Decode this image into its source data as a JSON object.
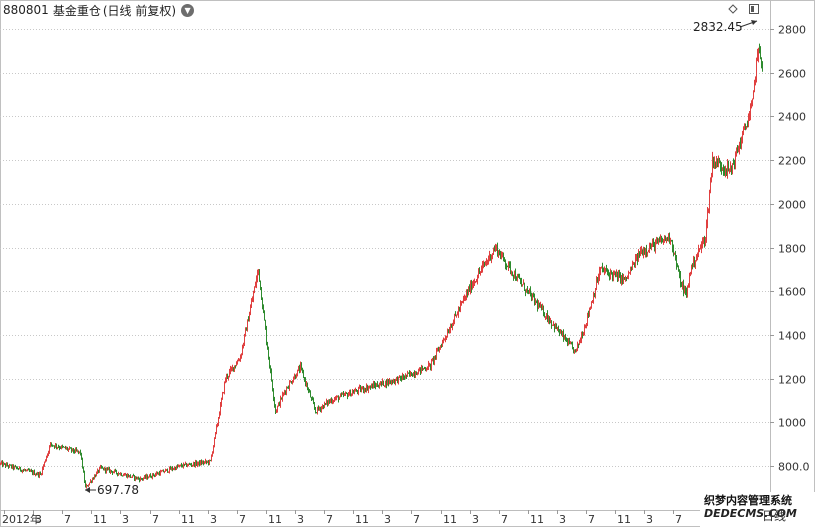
{
  "header": {
    "code": "880801",
    "name": "基金重仓",
    "mode": "(日线 前复权)",
    "dropdown_icon": "chevron-down-icon"
  },
  "watermark": {
    "line1": "织梦内容管理系统",
    "line2": "DEDECMS.COM",
    "suffix": "日线"
  },
  "colors": {
    "up": "#e04040",
    "down": "#2e8b2e",
    "grid": "#c8c8c8",
    "axis_text": "#333333"
  },
  "chart_data": {
    "type": "candlestick",
    "title": "880801 基金重仓 (日线 前复权)",
    "y_ticks": [
      "800.0",
      "1000",
      "1200",
      "1400",
      "1600",
      "1800",
      "2000",
      "2200",
      "2400",
      "2600",
      "2800"
    ],
    "ylim": [
      730,
      2860
    ],
    "x_ticks": [
      "2012年",
      "3",
      "7",
      "11",
      "3",
      "7",
      "11",
      "3",
      "7",
      "11",
      "3",
      "7",
      "11",
      "3",
      "7",
      "11",
      "3",
      "7",
      "11",
      "3",
      "7",
      "11",
      "3",
      "7",
      "11"
    ],
    "grid": true,
    "annotations": [
      {
        "label": "2832.45",
        "type": "max",
        "value": 2832.45,
        "label_side": "left"
      },
      {
        "label": "697.78",
        "type": "min",
        "value": 697.78,
        "label_side": "right"
      }
    ],
    "series": {
      "close_trend": [
        [
          0,
          810
        ],
        [
          40,
          760
        ],
        [
          50,
          900
        ],
        [
          80,
          860
        ],
        [
          85,
          700
        ],
        [
          100,
          790
        ],
        [
          140,
          740
        ],
        [
          180,
          800
        ],
        [
          210,
          820
        ],
        [
          225,
          1200
        ],
        [
          240,
          1300
        ],
        [
          258,
          1700
        ],
        [
          268,
          1300
        ],
        [
          275,
          1050
        ],
        [
          285,
          1150
        ],
        [
          300,
          1250
        ],
        [
          315,
          1050
        ],
        [
          330,
          1100
        ],
        [
          360,
          1150
        ],
        [
          400,
          1200
        ],
        [
          430,
          1260
        ],
        [
          470,
          1620
        ],
        [
          495,
          1800
        ],
        [
          510,
          1700
        ],
        [
          535,
          1550
        ],
        [
          575,
          1320
        ],
        [
          585,
          1450
        ],
        [
          600,
          1700
        ],
        [
          625,
          1650
        ],
        [
          640,
          1780
        ],
        [
          670,
          1850
        ],
        [
          680,
          1640
        ],
        [
          686,
          1580
        ],
        [
          690,
          1700
        ],
        [
          705,
          1850
        ],
        [
          712,
          2200
        ],
        [
          730,
          2150
        ],
        [
          745,
          2350
        ],
        [
          752,
          2450
        ],
        [
          757,
          2700
        ],
        [
          762,
          2650
        ]
      ]
    }
  }
}
